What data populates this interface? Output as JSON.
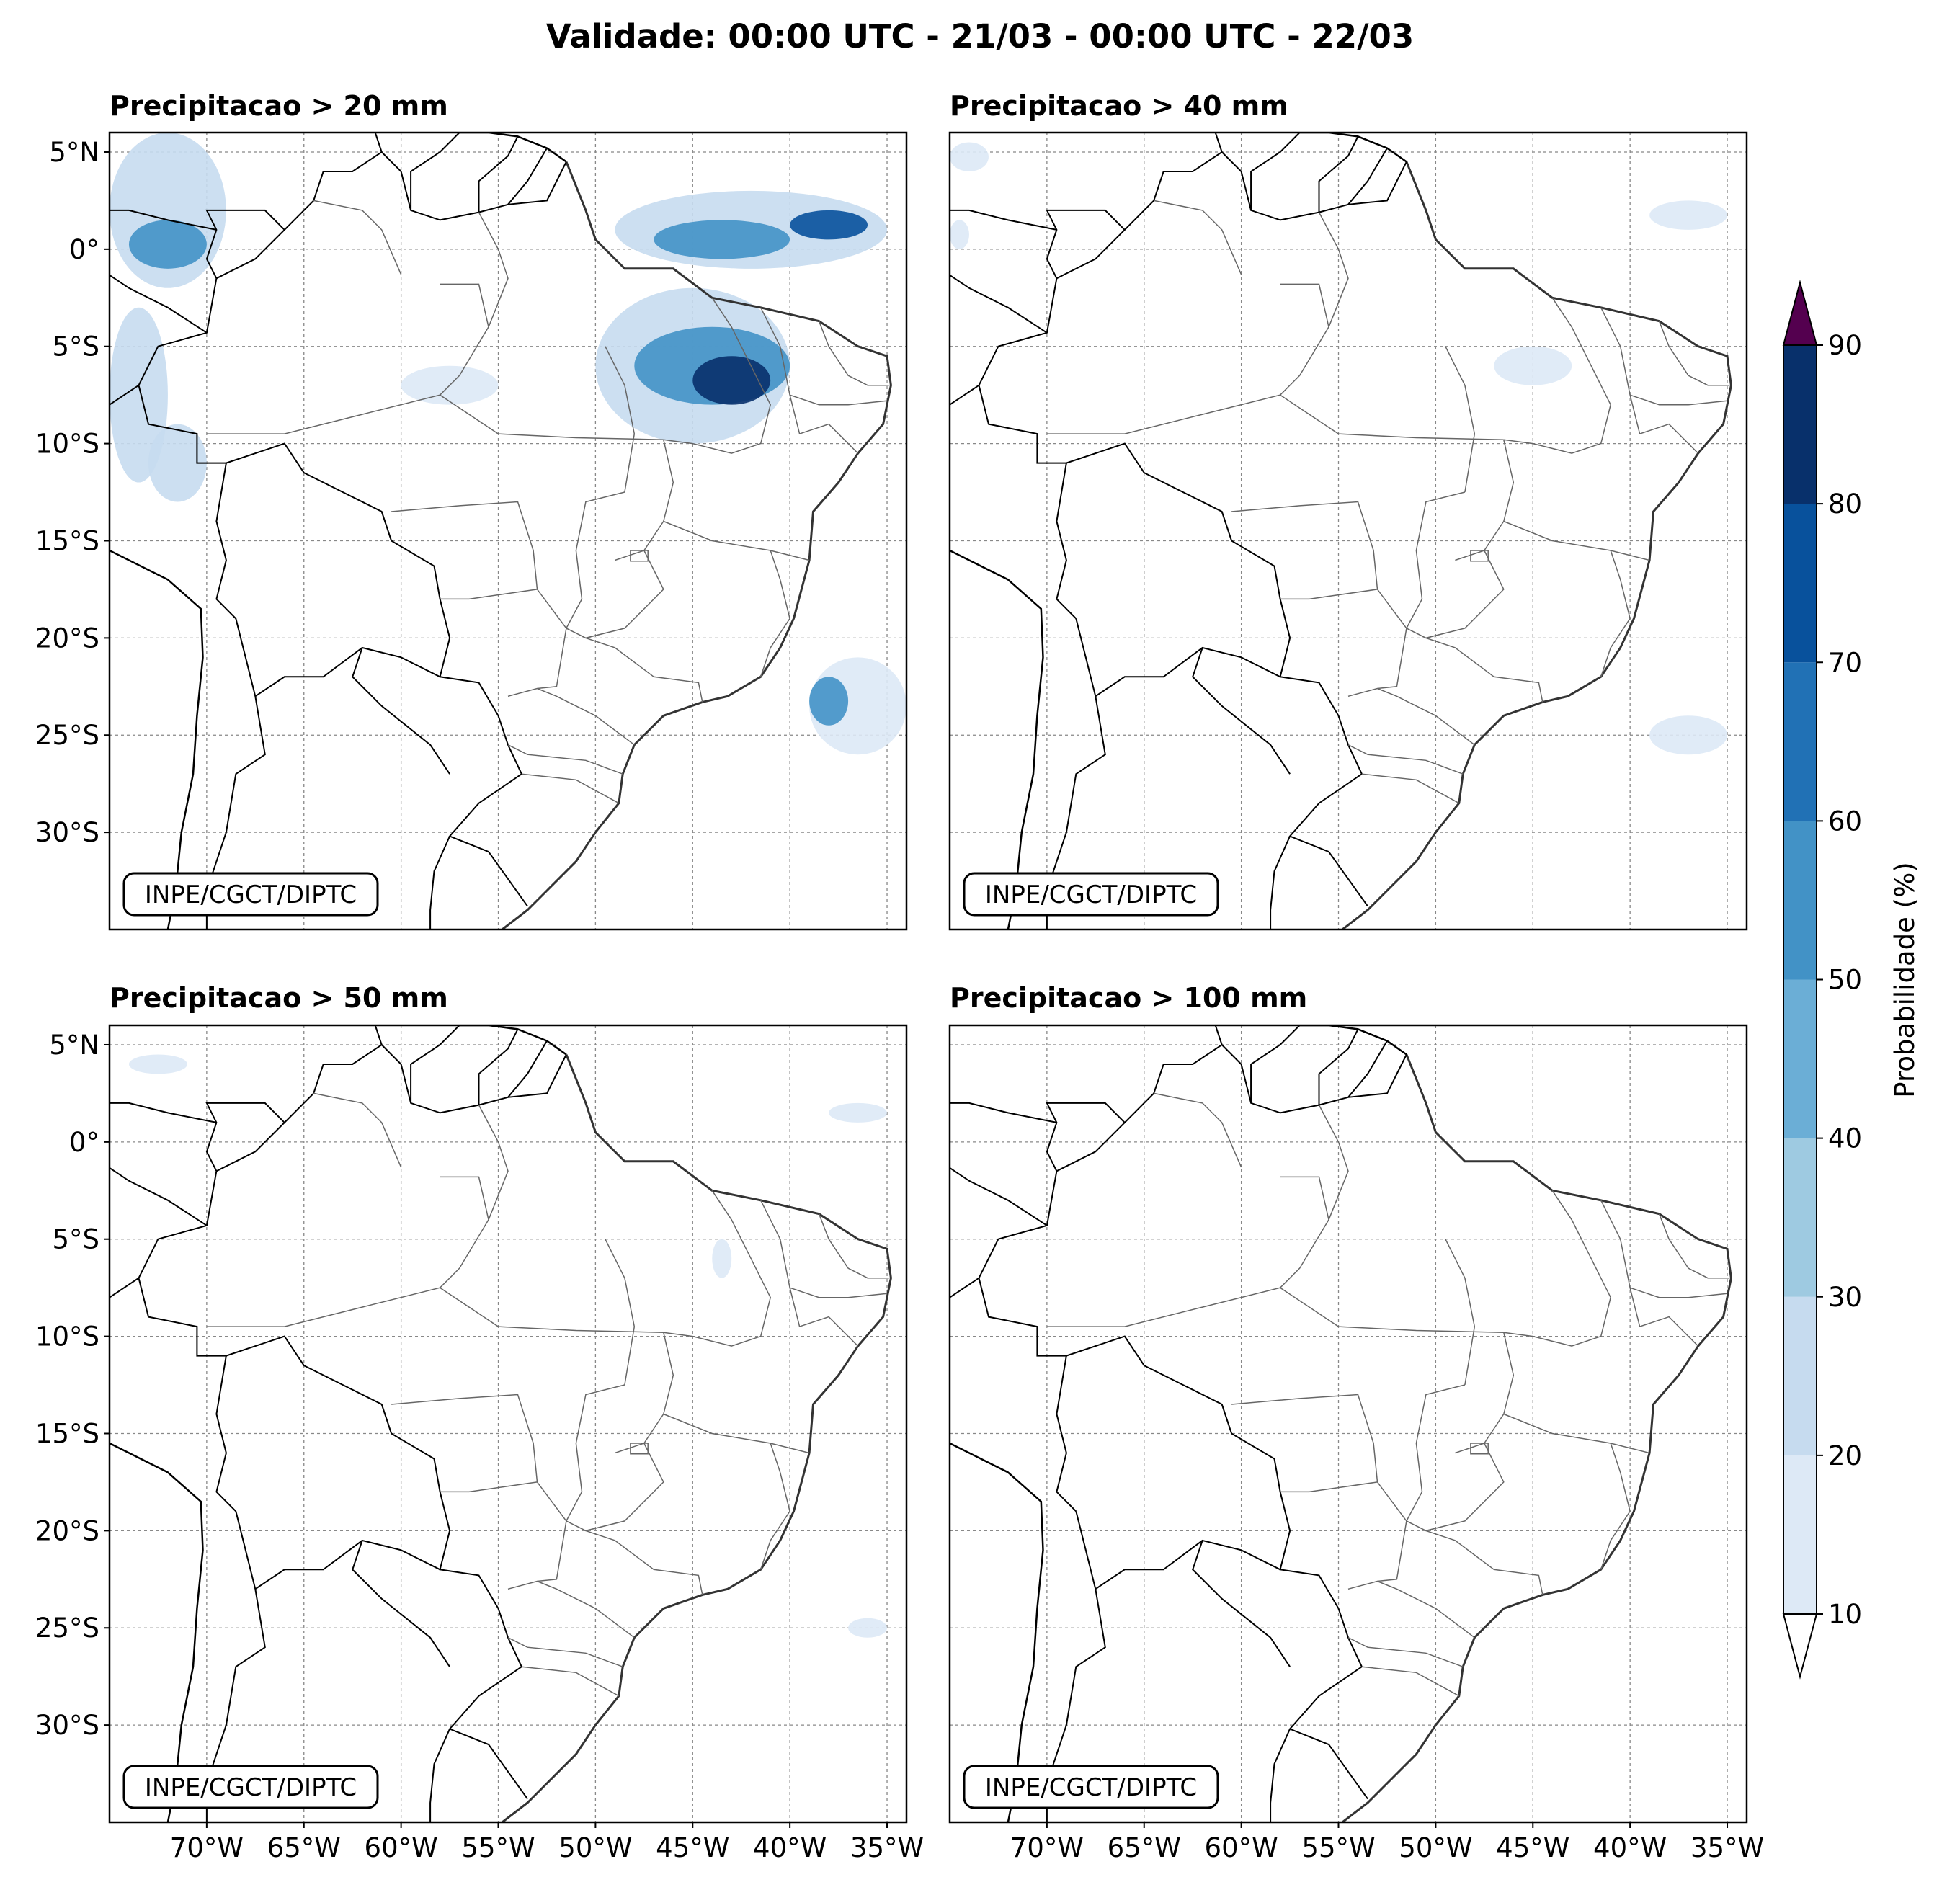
{
  "title": "Validade: 00:00 UTC - 21/03 - 00:00 UTC - 22/03",
  "credit": "INPE/CGCT/DIPTC",
  "colors": {
    "levels": [
      "#dde9f6",
      "#c6dbef",
      "#9ecae1",
      "#6baed6",
      "#4292c6",
      "#2171b5",
      "#08519c",
      "#08306b"
    ],
    "over": "#54004f",
    "border_country": "#000000",
    "border_state": "#666666",
    "grid": "#888888"
  },
  "chart_data": {
    "type": "heatmap",
    "map_extent": {
      "lon": [
        -75,
        -34
      ],
      "lat": [
        -35,
        6
      ]
    },
    "longitude_ticks": [
      {
        "value": -70,
        "label": "70°W"
      },
      {
        "value": -65,
        "label": "65°W"
      },
      {
        "value": -60,
        "label": "60°W"
      },
      {
        "value": -55,
        "label": "55°W"
      },
      {
        "value": -50,
        "label": "50°W"
      },
      {
        "value": -45,
        "label": "45°W"
      },
      {
        "value": -40,
        "label": "40°W"
      },
      {
        "value": -35,
        "label": "35°W"
      }
    ],
    "latitude_ticks": [
      {
        "value": 5,
        "label": "5°N"
      },
      {
        "value": 0,
        "label": "0°"
      },
      {
        "value": -5,
        "label": "5°S"
      },
      {
        "value": -10,
        "label": "10°S"
      },
      {
        "value": -15,
        "label": "15°S"
      },
      {
        "value": -20,
        "label": "20°S"
      },
      {
        "value": -25,
        "label": "25°S"
      },
      {
        "value": -30,
        "label": "30°S"
      }
    ],
    "grid": true,
    "colorbar": {
      "label": "Probabilidade (%)",
      "levels": [
        10,
        20,
        30,
        40,
        50,
        60,
        70,
        80,
        90
      ],
      "tick_labels": [
        "10",
        "20",
        "30",
        "40",
        "50",
        "60",
        "70",
        "80",
        "90"
      ],
      "extend": "both"
    },
    "panels": [
      {
        "title": "Precipitacao > 20 mm",
        "regions": [
          {
            "lon": [
              -75,
              -69
            ],
            "lat": [
              -2,
              6
            ],
            "level": 20
          },
          {
            "lon": [
              -74,
              -70
            ],
            "lat": [
              -1,
              1.5
            ],
            "level": 50
          },
          {
            "lon": [
              -75,
              -72
            ],
            "lat": [
              -12,
              -3
            ],
            "level": 20
          },
          {
            "lon": [
              -73,
              -70
            ],
            "lat": [
              -13,
              -9
            ],
            "level": 20
          },
          {
            "lon": [
              -49,
              -35
            ],
            "lat": [
              -1,
              3
            ],
            "level": 20
          },
          {
            "lon": [
              -47,
              -40
            ],
            "lat": [
              -0.5,
              1.5
            ],
            "level": 50
          },
          {
            "lon": [
              -40,
              -36
            ],
            "lat": [
              0.5,
              2
            ],
            "level": 70
          },
          {
            "lon": [
              -50,
              -40
            ],
            "lat": [
              -10,
              -2
            ],
            "level": 20
          },
          {
            "lon": [
              -48,
              -40
            ],
            "lat": [
              -8,
              -4
            ],
            "level": 50
          },
          {
            "lon": [
              -45,
              -41
            ],
            "lat": [
              -8,
              -5.5
            ],
            "level": 80
          },
          {
            "lon": [
              -39,
              -34
            ],
            "lat": [
              -26,
              -21
            ],
            "level": 10
          },
          {
            "lon": [
              -39,
              -37
            ],
            "lat": [
              -24.5,
              -22
            ],
            "level": 50
          },
          {
            "lon": [
              -60,
              -55
            ],
            "lat": [
              -8,
              -6
            ],
            "level": 10
          }
        ]
      },
      {
        "title": "Precipitacao > 40 mm",
        "regions": [
          {
            "lon": [
              -75,
              -73
            ],
            "lat": [
              4,
              5.5
            ],
            "level": 10
          },
          {
            "lon": [
              -75,
              -74
            ],
            "lat": [
              0,
              1.5
            ],
            "level": 10
          },
          {
            "lon": [
              -39,
              -35
            ],
            "lat": [
              1,
              2.5
            ],
            "level": 10
          },
          {
            "lon": [
              -39,
              -35
            ],
            "lat": [
              -26,
              -24
            ],
            "level": 10
          },
          {
            "lon": [
              -47,
              -43
            ],
            "lat": [
              -7,
              -5
            ],
            "level": 10
          }
        ]
      },
      {
        "title": "Precipitacao > 50 mm",
        "regions": [
          {
            "lon": [
              -74,
              -71
            ],
            "lat": [
              3.5,
              4.5
            ],
            "level": 10
          },
          {
            "lon": [
              -38,
              -35
            ],
            "lat": [
              1,
              2
            ],
            "level": 10
          },
          {
            "lon": [
              -37,
              -35
            ],
            "lat": [
              -25.5,
              -24.5
            ],
            "level": 10
          },
          {
            "lon": [
              -44,
              -43
            ],
            "lat": [
              -7,
              -5
            ],
            "level": 10
          }
        ]
      },
      {
        "title": "Precipitacao > 100 mm",
        "regions": []
      }
    ]
  }
}
